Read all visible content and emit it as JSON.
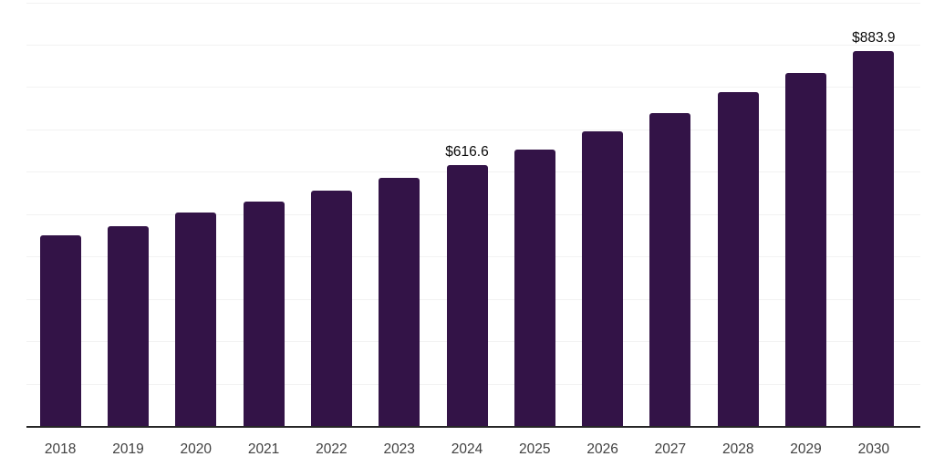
{
  "chart_data": {
    "type": "bar",
    "title": "",
    "xlabel": "",
    "ylabel": "",
    "categories": [
      "2018",
      "2019",
      "2020",
      "2021",
      "2022",
      "2023",
      "2024",
      "2025",
      "2026",
      "2027",
      "2028",
      "2029",
      "2030"
    ],
    "values": [
      450,
      472,
      503,
      530,
      555,
      586,
      616.6,
      653,
      695,
      739,
      788,
      834,
      883.9
    ],
    "data_labels": [
      {
        "category": "2024",
        "text": "$616.6"
      },
      {
        "category": "2030",
        "text": "$883.9"
      }
    ],
    "ylim": [
      0,
      1000
    ],
    "grid_step": 100,
    "grid": true,
    "legend": false,
    "y_axis_labels_visible": false,
    "colors": {
      "bar": "#331347",
      "gridline": "#f2f2f2",
      "axis_line": "#262626",
      "tick_label": "#404040",
      "data_label": "#0a0a0a",
      "background": "#ffffff"
    }
  }
}
